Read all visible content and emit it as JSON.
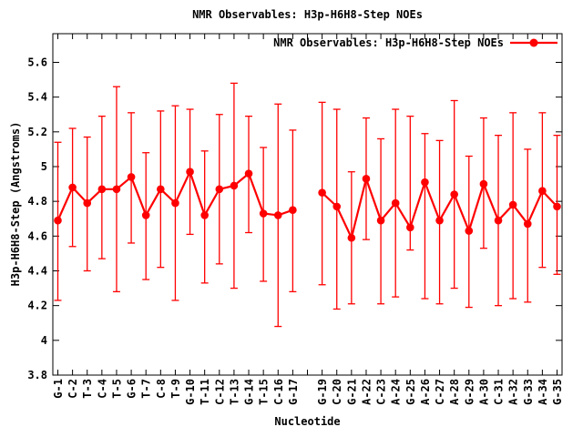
{
  "page_title": "NMR Observables: H3p-H6H8-Step NOEs",
  "chart_data": {
    "type": "line",
    "title": "NMR Observables: H3p-H6H8-Step NOEs",
    "xlabel": "Nucleotide",
    "ylabel": "H3p-H6H8-Step (Angstroms)",
    "legend": {
      "label": "NMR Observables: H3p-H6H8-Step NOEs",
      "position": "top-right-inside",
      "marker": "red-line-filled-circle"
    },
    "grid": false,
    "error_bars": true,
    "marker": "filled-circle",
    "series_color": "#ff0000",
    "axis_color": "#000000",
    "background_color": "#ffffff",
    "ylim": [
      3.8,
      5.765
    ],
    "xlim": [
      0.66,
      35.34
    ],
    "yticks": [
      3.8,
      4.0,
      4.2,
      4.4,
      4.6,
      4.8,
      5.0,
      5.2,
      5.4,
      5.6
    ],
    "ytick_labels": [
      "3.8",
      "4",
      "4.2",
      "4.4",
      "4.6",
      "4.8",
      "5",
      "5.2",
      "5.4",
      "5.6"
    ],
    "x_gap_positions": [
      18
    ],
    "points": [
      {
        "label": "G-1",
        "x": 1,
        "y": 4.69,
        "lo": 4.23,
        "hi": 5.14
      },
      {
        "label": "C-2",
        "x": 2,
        "y": 4.88,
        "lo": 4.54,
        "hi": 5.22
      },
      {
        "label": "T-3",
        "x": 3,
        "y": 4.79,
        "lo": 4.4,
        "hi": 5.17
      },
      {
        "label": "C-4",
        "x": 4,
        "y": 4.87,
        "lo": 4.47,
        "hi": 5.29
      },
      {
        "label": "T-5",
        "x": 5,
        "y": 4.87,
        "lo": 4.28,
        "hi": 5.46
      },
      {
        "label": "G-6",
        "x": 6,
        "y": 4.94,
        "lo": 4.56,
        "hi": 5.31
      },
      {
        "label": "T-7",
        "x": 7,
        "y": 4.72,
        "lo": 4.35,
        "hi": 5.08
      },
      {
        "label": "C-8",
        "x": 8,
        "y": 4.87,
        "lo": 4.42,
        "hi": 5.32
      },
      {
        "label": "T-9",
        "x": 9,
        "y": 4.79,
        "lo": 4.23,
        "hi": 5.35
      },
      {
        "label": "G-10",
        "x": 10,
        "y": 4.97,
        "lo": 4.61,
        "hi": 5.33
      },
      {
        "label": "T-11",
        "x": 11,
        "y": 4.72,
        "lo": 4.33,
        "hi": 5.09
      },
      {
        "label": "C-12",
        "x": 12,
        "y": 4.87,
        "lo": 4.44,
        "hi": 5.3
      },
      {
        "label": "T-13",
        "x": 13,
        "y": 4.89,
        "lo": 4.3,
        "hi": 5.48
      },
      {
        "label": "G-14",
        "x": 14,
        "y": 4.96,
        "lo": 4.62,
        "hi": 5.29
      },
      {
        "label": "T-15",
        "x": 15,
        "y": 4.73,
        "lo": 4.34,
        "hi": 5.11
      },
      {
        "label": "C-16",
        "x": 16,
        "y": 4.72,
        "lo": 4.08,
        "hi": 5.36
      },
      {
        "label": "G-17",
        "x": 17,
        "y": 4.75,
        "lo": 4.28,
        "hi": 5.21
      },
      {
        "label": "G-19",
        "x": 19,
        "y": 4.85,
        "lo": 4.32,
        "hi": 5.37
      },
      {
        "label": "C-20",
        "x": 20,
        "y": 4.77,
        "lo": 4.18,
        "hi": 5.33
      },
      {
        "label": "G-21",
        "x": 21,
        "y": 4.59,
        "lo": 4.21,
        "hi": 4.97
      },
      {
        "label": "A-22",
        "x": 22,
        "y": 4.93,
        "lo": 4.58,
        "hi": 5.28
      },
      {
        "label": "C-23",
        "x": 23,
        "y": 4.69,
        "lo": 4.21,
        "hi": 5.16
      },
      {
        "label": "A-24",
        "x": 24,
        "y": 4.79,
        "lo": 4.25,
        "hi": 5.33
      },
      {
        "label": "G-25",
        "x": 25,
        "y": 4.65,
        "lo": 4.52,
        "hi": 5.29
      },
      {
        "label": "A-26",
        "x": 26,
        "y": 4.91,
        "lo": 4.24,
        "hi": 5.19
      },
      {
        "label": "C-27",
        "x": 27,
        "y": 4.69,
        "lo": 4.21,
        "hi": 5.15
      },
      {
        "label": "A-28",
        "x": 28,
        "y": 4.84,
        "lo": 4.3,
        "hi": 5.38
      },
      {
        "label": "G-29",
        "x": 29,
        "y": 4.63,
        "lo": 4.19,
        "hi": 5.06
      },
      {
        "label": "A-30",
        "x": 30,
        "y": 4.9,
        "lo": 4.53,
        "hi": 5.28
      },
      {
        "label": "C-31",
        "x": 31,
        "y": 4.69,
        "lo": 4.2,
        "hi": 5.18
      },
      {
        "label": "A-32",
        "x": 32,
        "y": 4.78,
        "lo": 4.24,
        "hi": 5.31
      },
      {
        "label": "G-33",
        "x": 33,
        "y": 4.67,
        "lo": 4.22,
        "hi": 5.1
      },
      {
        "label": "A-34",
        "x": 34,
        "y": 4.86,
        "lo": 4.42,
        "hi": 5.31
      },
      {
        "label": "G-35",
        "x": 35,
        "y": 4.77,
        "lo": 4.38,
        "hi": 5.18
      }
    ]
  }
}
